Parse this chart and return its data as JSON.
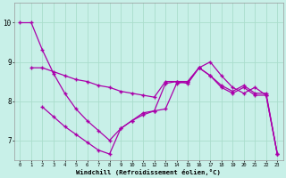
{
  "xlabel": "Windchill (Refroidissement éolien,°C)",
  "xlim": [
    -0.5,
    23.5
  ],
  "ylim": [
    6.5,
    10.5
  ],
  "bg_color": "#c8f0e8",
  "line_color": "#aa00aa",
  "grid_color": "#aaddcc",
  "yticks": [
    7,
    8,
    9,
    10
  ],
  "xticks": [
    0,
    1,
    2,
    3,
    4,
    5,
    6,
    7,
    8,
    9,
    10,
    11,
    12,
    13,
    14,
    15,
    16,
    17,
    18,
    19,
    20,
    21,
    22,
    23
  ],
  "line1_x": [
    0,
    1,
    2,
    3,
    4,
    5,
    6,
    7,
    8,
    9,
    10,
    11,
    12,
    13,
    14,
    15,
    16,
    17,
    18,
    19,
    20,
    21,
    22,
    23
  ],
  "line1_y": [
    10.0,
    10.0,
    9.3,
    8.7,
    8.2,
    7.8,
    7.5,
    7.25,
    7.0,
    7.3,
    7.5,
    7.7,
    7.75,
    8.45,
    8.5,
    8.5,
    8.85,
    8.65,
    8.35,
    8.2,
    8.35,
    8.15,
    8.15,
    6.65
  ],
  "line2_x": [
    1,
    2,
    3,
    4,
    5,
    6,
    7,
    8,
    9,
    10,
    11,
    12,
    13,
    14,
    15,
    16,
    17,
    18,
    19,
    20,
    21,
    22,
    23
  ],
  "line2_y": [
    8.85,
    8.85,
    8.75,
    8.65,
    8.55,
    8.5,
    8.4,
    8.35,
    8.25,
    8.2,
    8.15,
    8.1,
    8.5,
    8.5,
    8.45,
    8.85,
    8.65,
    8.4,
    8.25,
    8.4,
    8.2,
    8.2,
    6.65
  ],
  "line3_x": [
    2,
    3,
    4,
    5,
    6,
    7,
    8,
    9,
    10,
    11,
    12,
    13,
    14,
    15,
    16,
    17,
    18,
    19,
    20,
    21,
    22,
    23
  ],
  "line3_y": [
    7.85,
    7.6,
    7.35,
    7.15,
    6.95,
    6.75,
    6.65,
    7.3,
    7.5,
    7.65,
    7.75,
    7.8,
    8.45,
    8.5,
    8.85,
    9.0,
    8.65,
    8.35,
    8.2,
    8.35,
    8.15,
    6.65
  ]
}
